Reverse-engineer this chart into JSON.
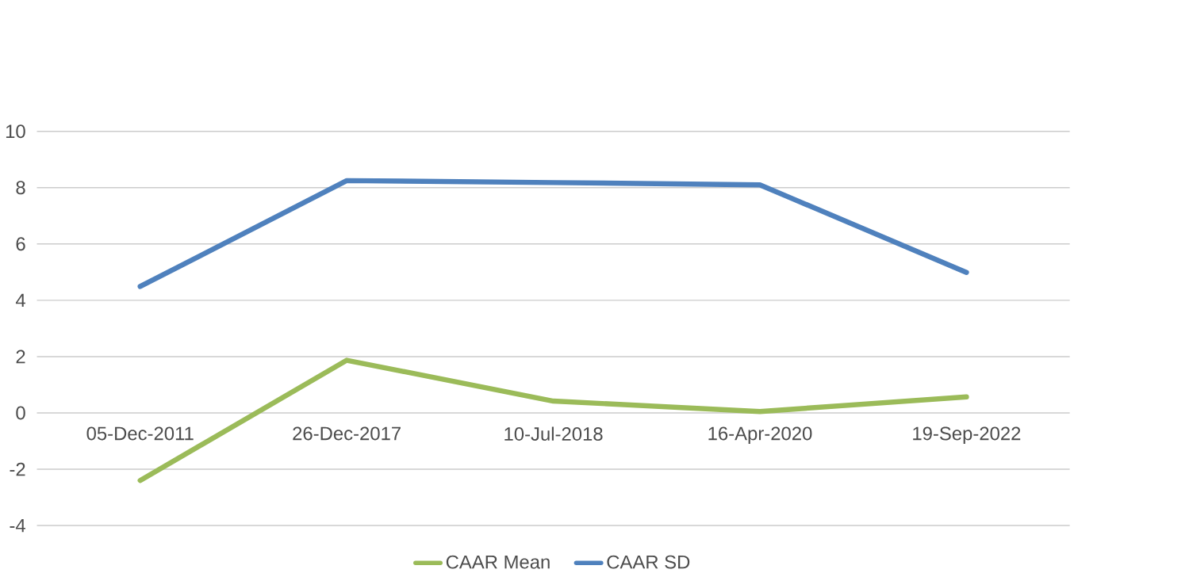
{
  "chart_data": {
    "type": "line",
    "categories": [
      "05-Dec-2011",
      "26-Dec-2017",
      "10-Jul-2018",
      "16-Apr-2020",
      "19-Sep-2022"
    ],
    "series": [
      {
        "name": "CAAR Mean",
        "color": "#9bbb59",
        "values": [
          -2.4,
          1.87,
          0.42,
          0.05,
          0.57
        ]
      },
      {
        "name": "CAAR SD",
        "color": "#4f81bd",
        "values": [
          4.49,
          8.25,
          8.18,
          8.1,
          4.99
        ]
      }
    ],
    "ylim": [
      -4,
      10
    ],
    "yticks": [
      -4,
      -2,
      0,
      2,
      4,
      6,
      8,
      10
    ],
    "grid": "y",
    "legend": "bottom",
    "marker": "none",
    "line_style": "solid"
  }
}
